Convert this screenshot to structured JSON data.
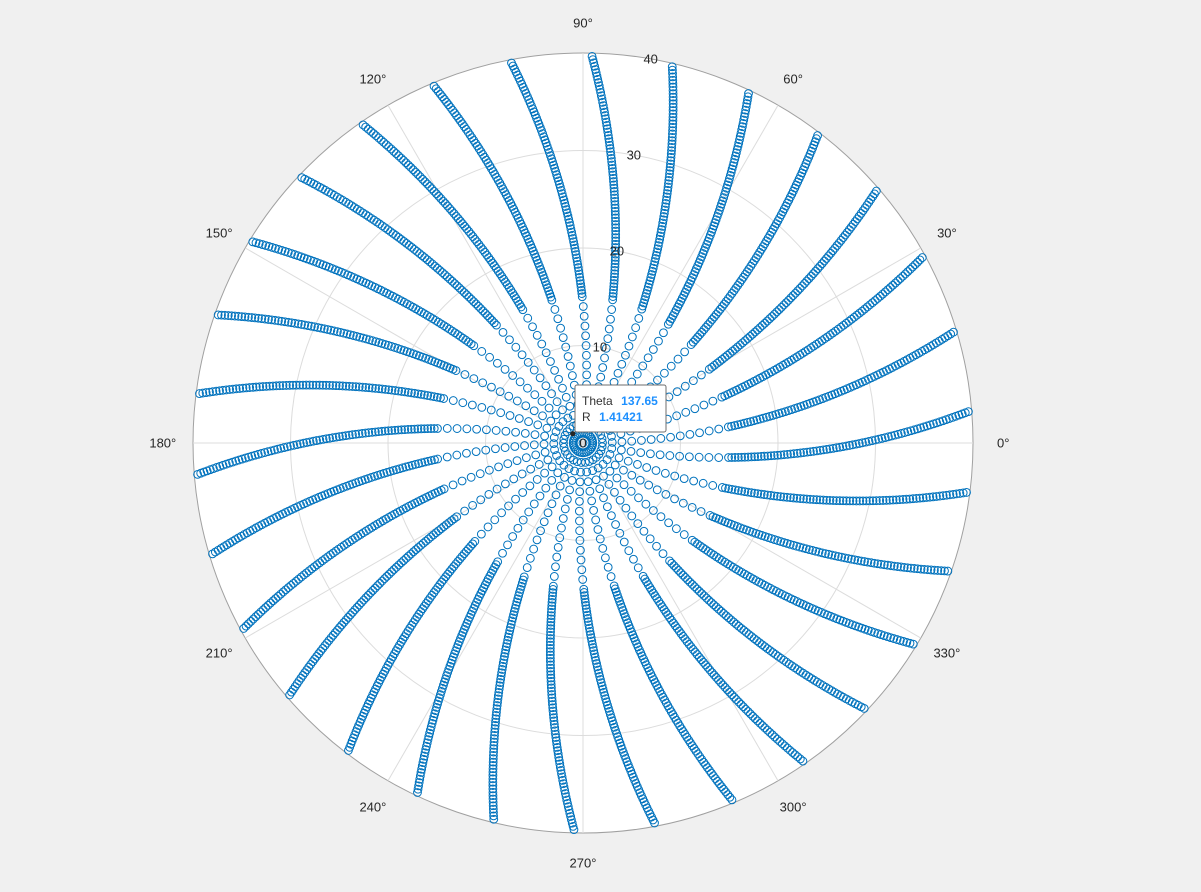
{
  "chart_data": {
    "type": "scatter",
    "coordinate_system": "polar",
    "title": "",
    "theta_unit": "degrees",
    "theta_ticks": [
      0,
      30,
      60,
      90,
      120,
      150,
      180,
      210,
      240,
      270,
      300,
      330
    ],
    "theta_tick_labels": [
      "0°",
      "30°",
      "60°",
      "90°",
      "120°",
      "150°",
      "180°",
      "210°",
      "240°",
      "270°",
      "300°",
      "330°"
    ],
    "r_ticks": [
      0,
      10,
      20,
      30,
      40
    ],
    "r_tick_labels": [
      "0",
      "10",
      "20",
      "30",
      "40"
    ],
    "rlim": [
      0,
      40
    ],
    "r_tick_label_angle_deg": 80,
    "grid": true,
    "marker": "circle",
    "marker_color": "#0072bd",
    "series": [
      {
        "description": "Spiral arms of points: r = sqrt(x^2 + y^2) on an integer grid with |x|,|y| <= 40 lying along 30 curved arms; r from 0 to about 40",
        "arms": 30,
        "arm_count_steps": 40,
        "arm_twist_deg_per_unit_r": 0.42,
        "arm_base_angles_deg_step": 12
      }
    ],
    "datatip": {
      "theta_label": "Theta",
      "theta_value": "137.65",
      "r_label": "R",
      "r_value": "1.41421"
    }
  }
}
